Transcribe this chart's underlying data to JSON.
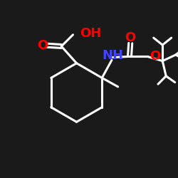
{
  "bg_color": "#1a1a1a",
  "bond_color": "#ffffff",
  "bond_width": 2.2,
  "atom_colors": {
    "O": "#ff0000",
    "N": "#4444ff",
    "C": "#ffffff",
    "H": "#ffffff"
  },
  "font_size_atoms": 13,
  "font_size_small": 10
}
